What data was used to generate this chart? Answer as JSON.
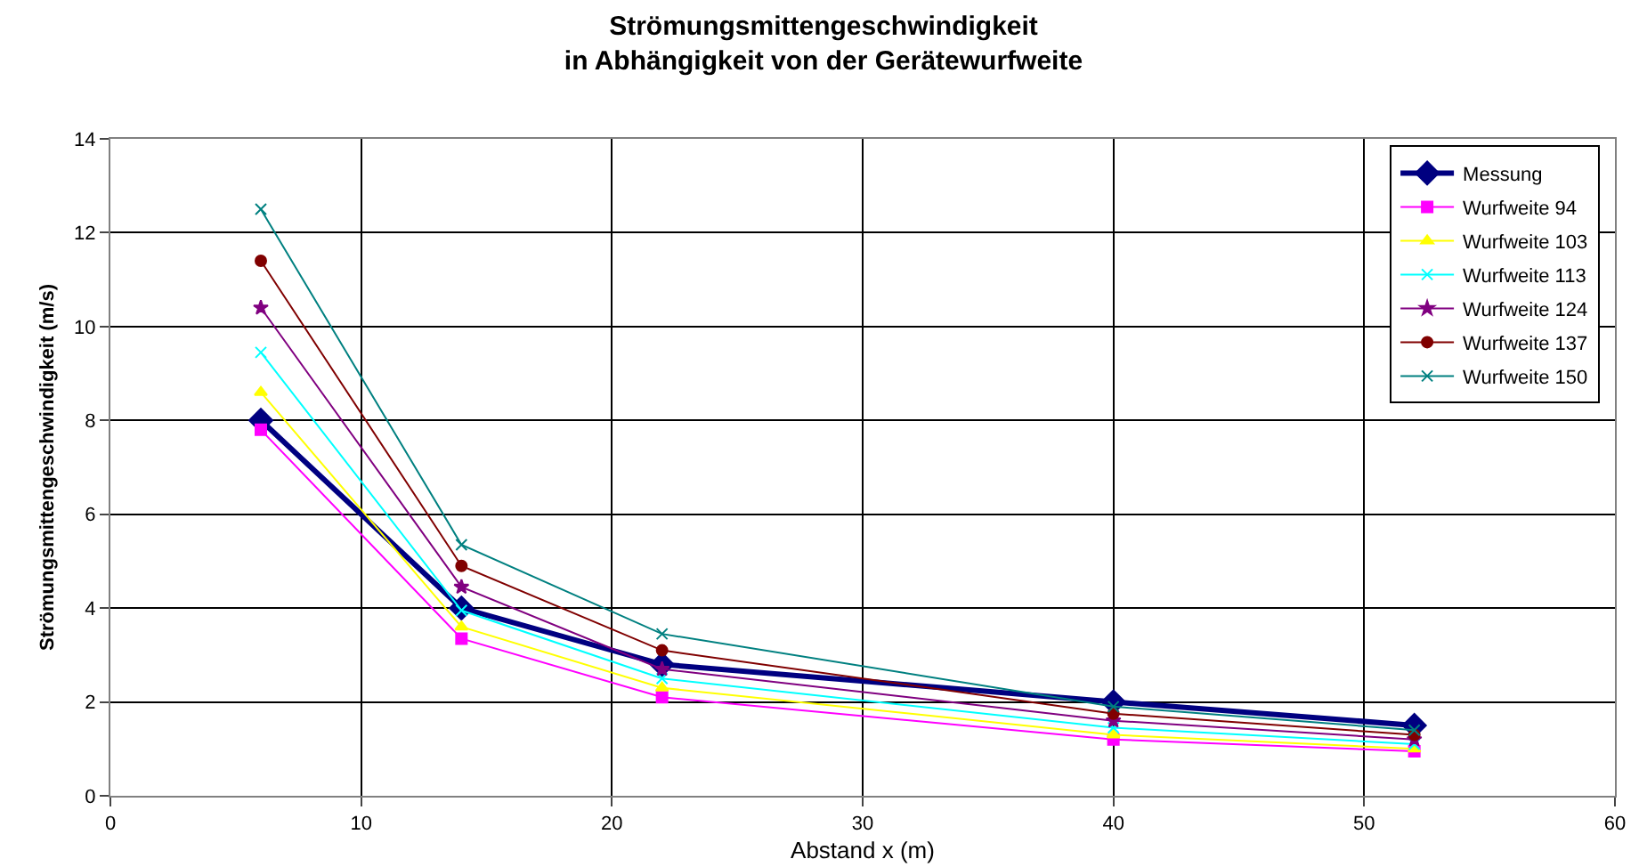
{
  "chart_data": {
    "type": "line",
    "title": "Strömungsmittengeschwindigkeit\nin Abhängigkeit von der Gerätewurfweite",
    "xlabel": "Abstand x (m)",
    "ylabel": "Strömungsmittengeschwindigkeit (m/s)",
    "x": [
      6,
      14,
      22,
      40,
      52
    ],
    "xlim": [
      0,
      60
    ],
    "xticks": [
      0,
      10,
      20,
      30,
      40,
      50,
      60
    ],
    "ylim": [
      0,
      14
    ],
    "yticks": [
      0,
      2,
      4,
      6,
      8,
      10,
      12,
      14
    ],
    "grid": true,
    "legend": "top right",
    "series": [
      {
        "name": "Messung",
        "color": "#000080",
        "marker": "diamond",
        "values": [
          8.0,
          4.0,
          2.8,
          2.0,
          1.5
        ]
      },
      {
        "name": "Wurfweite 94",
        "color": "#ff00ff",
        "marker": "square",
        "values": [
          7.8,
          3.35,
          2.1,
          1.2,
          0.95
        ]
      },
      {
        "name": "Wurfweite 103",
        "color": "#ffff00",
        "marker": "triangle",
        "values": [
          8.6,
          3.6,
          2.3,
          1.3,
          1.0
        ]
      },
      {
        "name": "Wurfweite 113",
        "color": "#00ffff",
        "marker": "cross",
        "values": [
          9.45,
          3.95,
          2.5,
          1.45,
          1.1
        ]
      },
      {
        "name": "Wurfweite 124",
        "color": "#800080",
        "marker": "star",
        "values": [
          10.4,
          4.45,
          2.7,
          1.6,
          1.2
        ]
      },
      {
        "name": "Wurfweite 137",
        "color": "#800000",
        "marker": "circle",
        "values": [
          11.4,
          4.9,
          3.1,
          1.75,
          1.3
        ]
      },
      {
        "name": "Wurfweite 150",
        "color": "#008080",
        "marker": "cross",
        "values": [
          12.5,
          5.35,
          3.45,
          1.9,
          1.4
        ]
      }
    ]
  }
}
